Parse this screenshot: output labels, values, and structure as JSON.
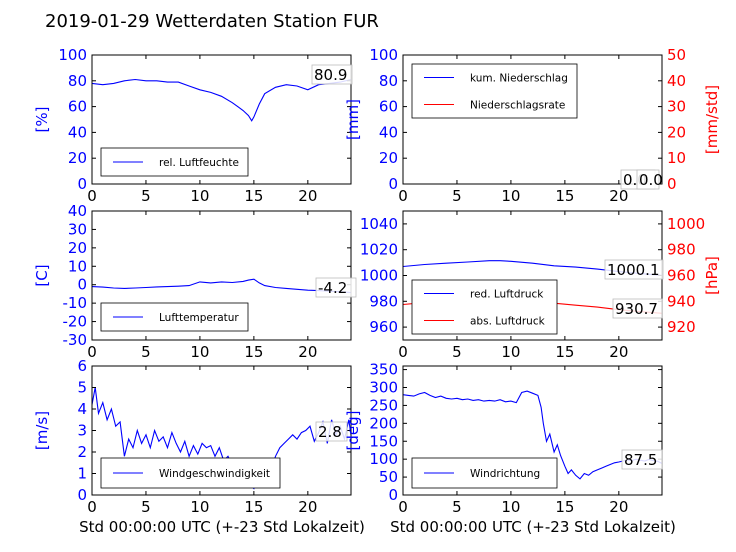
{
  "title": "2019-01-29 Wetterdaten Station FUR",
  "colors": {
    "left_axis": "#0000ff",
    "right_axis": "#ff0000",
    "line_primary": "#0000ff",
    "line_secondary": "#ff0000"
  },
  "chart_data": [
    {
      "id": "humidity",
      "type": "line",
      "xlim": [
        0,
        24
      ],
      "ylim": [
        0,
        100
      ],
      "xticks": [
        0,
        5,
        10,
        15,
        20
      ],
      "yticks": [
        0,
        20,
        40,
        60,
        80,
        100
      ],
      "ylabel": "[%]",
      "legend": [
        "rel. Luftfeuchte"
      ],
      "legend_position": "lower-left",
      "annotation": "80.9",
      "series": [
        {
          "name": "rel. Luftfeuchte",
          "color": "#0000ff",
          "x": [
            0,
            1,
            2,
            3,
            4,
            5,
            6,
            7,
            8,
            9,
            10,
            11,
            12,
            13,
            13.5,
            14,
            14.5,
            14.8,
            15,
            15.5,
            16,
            17,
            18,
            19,
            20,
            21,
            22,
            23,
            24
          ],
          "y": [
            78,
            77,
            78,
            80,
            81,
            80,
            80,
            79,
            79,
            76,
            73,
            71,
            68,
            63,
            60,
            57,
            53,
            49,
            52,
            62,
            70,
            75,
            77,
            76,
            73,
            77,
            78,
            79,
            81
          ]
        }
      ]
    },
    {
      "id": "precipitation",
      "type": "line",
      "xlim": [
        0,
        24
      ],
      "ylim": [
        0,
        100
      ],
      "y2lim": [
        0,
        50
      ],
      "xticks": [
        0,
        5,
        10,
        15,
        20
      ],
      "yticks": [
        0,
        20,
        40,
        60,
        80,
        100
      ],
      "y2ticks": [
        0,
        10,
        20,
        30,
        40,
        50
      ],
      "ylabel": "[mm]",
      "y2label": "[mm/std]",
      "legend": [
        "kum. Niederschlag",
        "Niederschlagsrate"
      ],
      "legend_position": "upper-left",
      "annotations": [
        "0.0",
        "0.0"
      ],
      "series": [
        {
          "name": "kum. Niederschlag",
          "color": "#0000ff",
          "x": [
            0,
            24
          ],
          "y": [
            0,
            0
          ]
        },
        {
          "name": "Niederschlagsrate",
          "color": "#ff0000",
          "axis": "right",
          "x": [
            0,
            24
          ],
          "y": [
            0,
            0
          ]
        }
      ]
    },
    {
      "id": "temperature",
      "type": "line",
      "xlim": [
        0,
        24
      ],
      "ylim": [
        -30,
        40
      ],
      "xticks": [
        0,
        5,
        10,
        15,
        20
      ],
      "yticks": [
        -30,
        -20,
        -10,
        0,
        10,
        20,
        30,
        40
      ],
      "ylabel": "[C]",
      "legend": [
        "Lufttemperatur"
      ],
      "legend_position": "lower-left",
      "annotation": "-4.2",
      "series": [
        {
          "name": "Lufttemperatur",
          "color": "#0000ff",
          "x": [
            0,
            1,
            2,
            3,
            4,
            5,
            6,
            7,
            8,
            9,
            10,
            11,
            12,
            13,
            14,
            14.5,
            15,
            15.5,
            16,
            17,
            18,
            19,
            20,
            21,
            22,
            23,
            24
          ],
          "y": [
            -1,
            -1.3,
            -1.8,
            -2,
            -1.8,
            -1.5,
            -1.2,
            -1,
            -0.8,
            -0.5,
            1.5,
            1,
            1.5,
            1.2,
            1.8,
            2.5,
            3,
            1,
            -0.5,
            -1.5,
            -2,
            -2.5,
            -3,
            -3.2,
            -3.5,
            -3.8,
            -4.2
          ]
        }
      ]
    },
    {
      "id": "pressure",
      "type": "line",
      "xlim": [
        0,
        24
      ],
      "ylim": [
        950,
        1050
      ],
      "y2lim": [
        910,
        1010
      ],
      "xticks": [
        0,
        5,
        10,
        15,
        20
      ],
      "yticks": [
        960,
        980,
        1000,
        1020,
        1040
      ],
      "y2ticks": [
        920,
        940,
        960,
        980,
        1000
      ],
      "ylabel": "",
      "y2label": "[hPa]",
      "legend": [
        "red. Luftdruck",
        "abs. Luftdruck"
      ],
      "legend_position": "lower-left",
      "annotations": [
        "1000.1",
        "930.7"
      ],
      "series": [
        {
          "name": "red. Luftdruck",
          "color": "#0000ff",
          "x": [
            0,
            2,
            4,
            6,
            8,
            9,
            10,
            12,
            14,
            16,
            18,
            20,
            22,
            24
          ],
          "y": [
            1007,
            1008.5,
            1009.5,
            1010.5,
            1011.5,
            1011.5,
            1011,
            1009.5,
            1007.5,
            1006.5,
            1005,
            1003,
            1001.5,
            1000.1
          ]
        },
        {
          "name": "abs. Luftdruck",
          "color": "#ff0000",
          "axis": "right",
          "x": [
            0,
            2,
            4,
            6,
            8,
            9,
            10,
            12,
            14,
            16,
            18,
            20,
            22,
            24
          ],
          "y": [
            937.5,
            939,
            940,
            941,
            941.5,
            941.5,
            941,
            940,
            938.5,
            937,
            935.5,
            933.5,
            932,
            930.7
          ]
        }
      ]
    },
    {
      "id": "windspeed",
      "type": "line",
      "xlim": [
        0,
        24
      ],
      "ylim": [
        0,
        6
      ],
      "xticks": [
        0,
        5,
        10,
        15,
        20
      ],
      "yticks": [
        0,
        1,
        2,
        3,
        4,
        5,
        6
      ],
      "ylabel": "[m/s]",
      "legend": [
        "Windgeschwindigkeit"
      ],
      "legend_position": "lower-left",
      "annotation": "2.8",
      "series": [
        {
          "name": "Windgeschwindigkeit",
          "color": "#0000ff",
          "x": [
            0,
            0.3,
            0.6,
            1,
            1.4,
            1.8,
            2.2,
            2.6,
            3,
            3.4,
            3.8,
            4.2,
            4.6,
            5,
            5.4,
            5.8,
            6.2,
            6.6,
            7,
            7.4,
            7.8,
            8.2,
            8.6,
            9,
            9.4,
            9.8,
            10.2,
            10.6,
            11,
            11.4,
            11.8,
            12.2,
            12.6,
            13,
            13.4,
            13.8,
            14.2,
            14.6,
            15,
            15.4,
            15.8,
            16.2,
            16.6,
            17,
            17.4,
            17.8,
            18.2,
            18.6,
            19,
            19.4,
            19.8,
            20.2,
            20.6,
            21,
            21.4,
            21.8,
            22.2,
            22.6,
            23,
            23.4,
            23.8,
            24
          ],
          "y": [
            4.2,
            5,
            3.8,
            4.3,
            3.5,
            4,
            3.2,
            3.4,
            1.8,
            2.6,
            2.2,
            3,
            2.4,
            2.8,
            2.2,
            3,
            2.5,
            2.7,
            2.2,
            2.9,
            2.4,
            2,
            2.5,
            1.8,
            2.3,
            1.9,
            2.4,
            2.2,
            2.3,
            1.8,
            2.2,
            1.6,
            1.8,
            1.4,
            1.1,
            1.5,
            0.8,
            0.5,
            0.3,
            0.9,
            1,
            1.4,
            1.2,
            1.8,
            2.2,
            2.4,
            2.6,
            2.8,
            2.6,
            2.9,
            3,
            3.2,
            2.5,
            2.9,
            3.4,
            2.4,
            3.5,
            2.8,
            3.2,
            2.6,
            3.5,
            2.8
          ]
        }
      ]
    },
    {
      "id": "winddirection",
      "type": "line",
      "xlim": [
        0,
        24
      ],
      "ylim": [
        0,
        360
      ],
      "xticks": [
        0,
        5,
        10,
        15,
        20
      ],
      "yticks": [
        0,
        50,
        100,
        150,
        200,
        250,
        300,
        350
      ],
      "ylabel": "[deg]",
      "legend": [
        "Windrichtung"
      ],
      "legend_position": "lower-left",
      "annotation": "87.5",
      "series": [
        {
          "name": "Windrichtung",
          "color": "#0000ff",
          "x": [
            0,
            0.5,
            1,
            1.5,
            2,
            2.5,
            3,
            3.5,
            4,
            4.5,
            5,
            5.5,
            6,
            6.5,
            7,
            7.5,
            8,
            8.5,
            9,
            9.5,
            10,
            10.5,
            11,
            11.5,
            12,
            12.5,
            12.8,
            13,
            13.3,
            13.6,
            14,
            14.3,
            14.6,
            15,
            15.3,
            15.6,
            16,
            16.4,
            16.8,
            17.2,
            17.6,
            18,
            18.4,
            18.8,
            19.2,
            19.6,
            20,
            20.4,
            20.8,
            21.2,
            21.6,
            22,
            22.4,
            22.8,
            23.2,
            23.6,
            24
          ],
          "y": [
            280,
            278,
            276,
            282,
            286,
            278,
            272,
            276,
            270,
            268,
            270,
            266,
            268,
            264,
            266,
            262,
            264,
            262,
            266,
            260,
            262,
            258,
            286,
            290,
            284,
            278,
            245,
            200,
            150,
            170,
            120,
            140,
            110,
            80,
            60,
            70,
            55,
            45,
            60,
            55,
            65,
            70,
            75,
            80,
            85,
            90,
            92,
            95,
            98,
            96,
            100,
            97,
            95,
            99,
            96,
            94,
            88
          ]
        }
      ]
    }
  ],
  "xlabel": "Std 00:00:00 UTC (+-23 Std Lokalzeit)"
}
